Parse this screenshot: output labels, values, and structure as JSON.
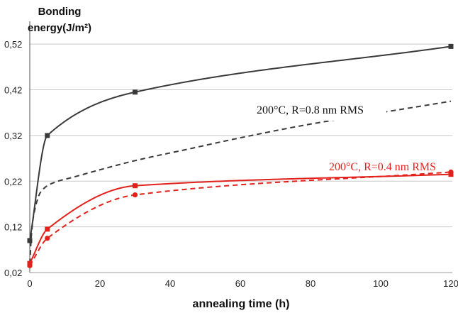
{
  "chart_data": {
    "type": "line",
    "ylabel_line1": "Bonding",
    "ylabel_line2": "energy(J/m²)",
    "xlabel": "annealing time (h)",
    "xlim": [
      0,
      120
    ],
    "ylim": [
      0.02,
      0.57
    ],
    "x_ticks": [
      0,
      20,
      40,
      60,
      80,
      100,
      120
    ],
    "x_tick_labels": [
      "0",
      "20",
      "40",
      "60",
      "80",
      "100",
      "120"
    ],
    "y_ticks": [
      0.02,
      0.12,
      0.22,
      0.32,
      0.42,
      0.52
    ],
    "y_tick_labels": [
      "0,02",
      "0,12",
      "0,22",
      "0,32",
      "0,42",
      "0,52"
    ],
    "grid": true,
    "colors": {
      "black": "#3a3a3a",
      "red": "#e3211c"
    },
    "series": [
      {
        "color": "#3a3a3a",
        "style": "solid",
        "marker": "square",
        "x": [
          0,
          5,
          30,
          120
        ],
        "y": [
          0.09,
          0.32,
          0.415,
          0.515
        ]
      },
      {
        "color": "#3a3a3a",
        "style": "dashed",
        "marker": "none",
        "x": [
          0,
          0.5,
          1,
          2,
          3,
          5,
          8,
          12,
          20,
          30,
          45,
          60,
          80,
          100,
          120
        ],
        "y": [
          0.04,
          0.105,
          0.14,
          0.175,
          0.195,
          0.21,
          0.22,
          0.228,
          0.245,
          0.265,
          0.29,
          0.315,
          0.345,
          0.37,
          0.395
        ]
      },
      {
        "color": "#e3211c",
        "style": "solid",
        "marker": "square",
        "x": [
          0,
          5,
          30,
          120
        ],
        "y": [
          0.04,
          0.115,
          0.21,
          0.235
        ]
      },
      {
        "color": "#e3211c",
        "style": "dashed",
        "marker": "circle",
        "x": [
          0,
          5,
          30,
          120
        ],
        "y": [
          0.035,
          0.095,
          0.19,
          0.24
        ]
      }
    ],
    "annotations": [
      {
        "text": "200°C, R=0.8 nm RMS",
        "color": "#111111"
      },
      {
        "text": "200°C, R=0.4 nm RMS",
        "color": "#e3211c"
      }
    ]
  }
}
